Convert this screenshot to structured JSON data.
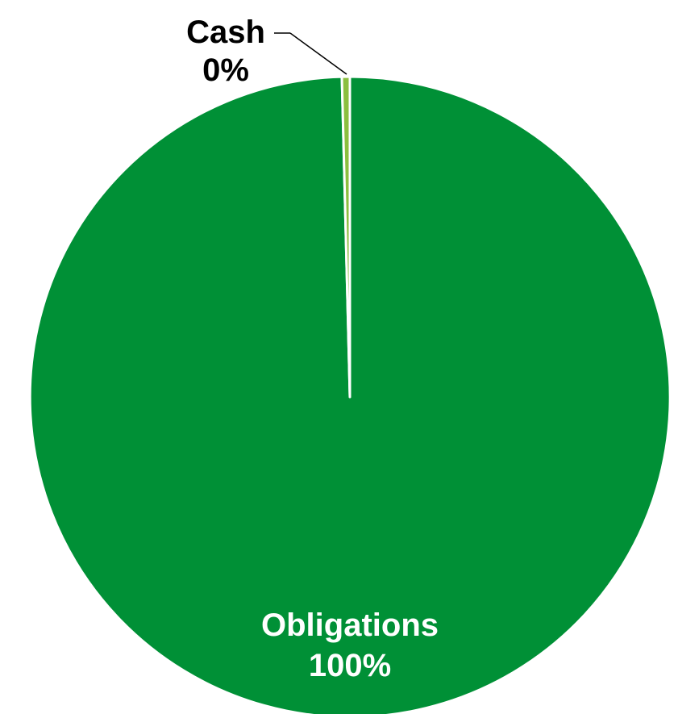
{
  "chart_data": {
    "type": "pie",
    "title": "",
    "slices": [
      {
        "label": "Obligations",
        "value_label": "100%",
        "value": 99.6,
        "color": "#009036"
      },
      {
        "label": "Cash",
        "value_label": "0%",
        "value": 0.4,
        "color": "#8cbf3f"
      }
    ],
    "start_angle_deg": 0,
    "direction": "clockwise",
    "slice_border_color": "#ffffff",
    "label_colors": {
      "Obligations": "#ffffff",
      "Cash": "#000000"
    },
    "leader_line_color": "#000000"
  }
}
